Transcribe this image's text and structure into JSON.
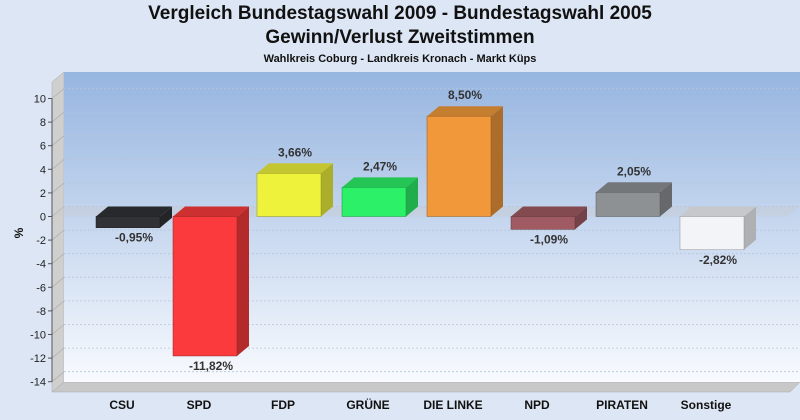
{
  "title_line1": "Vergleich Bundestagswahl 2009 - Bundestagswahl 2005",
  "title_line2": "Gewinn/Verlust Zweitstimmen",
  "subtitle": "Wahlkreis Coburg - Landkreis Kronach - Markt Küps",
  "chart_data": {
    "type": "bar",
    "ylabel": "%",
    "ylim": [
      -14,
      10
    ],
    "ytick_step": 2,
    "grid": true,
    "categories": [
      "CSU",
      "SPD",
      "FDP",
      "GRÜNE",
      "DIE LINKE",
      "NPD",
      "PIRATEN",
      "Sonstige"
    ],
    "values": [
      -0.95,
      -11.82,
      3.66,
      2.47,
      8.5,
      -1.09,
      2.05,
      -2.82
    ],
    "value_labels": [
      "-0,95%",
      "-11,82%",
      "3,66%",
      "2,47%",
      "8,50%",
      "-1,09%",
      "2,05%",
      "-2,82%"
    ],
    "colors": [
      "#303236",
      "#fa3a3c",
      "#eef23a",
      "#2cf068",
      "#f0983a",
      "#a05a62",
      "#8e9194",
      "#f2f4f8"
    ]
  }
}
